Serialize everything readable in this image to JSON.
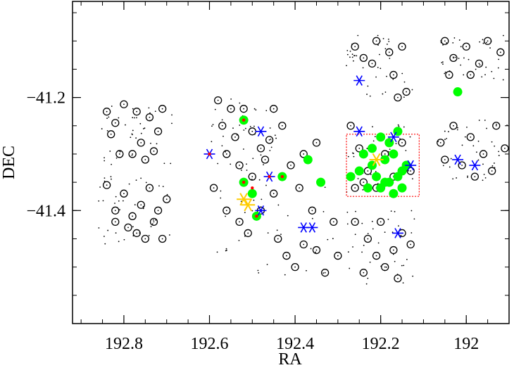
{
  "chart_data": {
    "type": "scatter",
    "title": "",
    "xlabel": "RA",
    "ylabel": "DEC",
    "xlim": [
      192.92,
      191.9
    ],
    "ylim": [
      -41.6,
      -41.03
    ],
    "x_ticks": [
      192.8,
      192.6,
      192.4,
      192.2,
      192.0
    ],
    "x_tick_labels": [
      "192.8",
      "192.6",
      "192.4",
      "192.2",
      "192"
    ],
    "y_ticks": [
      -41.2,
      -41.4
    ],
    "y_tick_labels": [
      "−41.2",
      "−41.4"
    ],
    "grid": false,
    "legend": "none",
    "colors": {
      "circles": "#000000",
      "green_filled": "#00ff00",
      "blue_stars": "#0000ff",
      "yellow_stars": "#ffcc00",
      "red_marks": "#ff0000",
      "dotted_box": "#ff0000"
    },
    "series": [
      {
        "marker": "open-circle",
        "points": [
          [
            192.84,
            -41.225
          ],
          [
            192.82,
            -41.245
          ],
          [
            192.8,
            -41.212
          ],
          [
            192.77,
            -41.225
          ],
          [
            192.74,
            -41.235
          ],
          [
            192.72,
            -41.26
          ],
          [
            192.76,
            -41.28
          ],
          [
            192.78,
            -41.3
          ],
          [
            192.83,
            -41.265
          ],
          [
            192.81,
            -41.3
          ],
          [
            192.73,
            -41.295
          ],
          [
            192.71,
            -41.22
          ],
          [
            192.75,
            -41.31
          ],
          [
            192.84,
            -41.355
          ],
          [
            192.82,
            -41.4
          ],
          [
            192.8,
            -41.37
          ],
          [
            192.78,
            -41.41
          ],
          [
            192.76,
            -41.39
          ],
          [
            192.74,
            -41.36
          ],
          [
            192.72,
            -41.4
          ],
          [
            192.7,
            -41.38
          ],
          [
            192.77,
            -41.44
          ],
          [
            192.75,
            -41.45
          ],
          [
            192.73,
            -41.42
          ],
          [
            192.79,
            -41.43
          ],
          [
            192.71,
            -41.45
          ],
          [
            192.82,
            -41.42
          ],
          [
            192.58,
            -41.205
          ],
          [
            192.55,
            -41.22
          ],
          [
            192.57,
            -41.25
          ],
          [
            192.54,
            -41.27
          ],
          [
            192.52,
            -41.22
          ],
          [
            192.5,
            -41.26
          ],
          [
            192.48,
            -41.29
          ],
          [
            192.56,
            -41.3
          ],
          [
            192.53,
            -41.32
          ],
          [
            192.5,
            -41.34
          ],
          [
            192.47,
            -41.31
          ],
          [
            192.45,
            -41.22
          ],
          [
            192.46,
            -41.275
          ],
          [
            192.59,
            -41.36
          ],
          [
            192.56,
            -41.4
          ],
          [
            192.53,
            -41.42
          ],
          [
            192.51,
            -41.44
          ],
          [
            192.48,
            -41.4
          ],
          [
            192.45,
            -41.37
          ],
          [
            192.44,
            -41.45
          ],
          [
            192.42,
            -41.48
          ],
          [
            192.4,
            -41.5
          ],
          [
            192.38,
            -41.46
          ],
          [
            192.35,
            -41.47
          ],
          [
            192.33,
            -41.51
          ],
          [
            192.36,
            -41.4
          ],
          [
            192.39,
            -41.36
          ],
          [
            192.41,
            -41.32
          ],
          [
            192.38,
            -41.3
          ],
          [
            192.35,
            -41.28
          ],
          [
            192.43,
            -41.25
          ],
          [
            192.31,
            -41.42
          ],
          [
            192.3,
            -41.48
          ],
          [
            192.26,
            -41.11
          ],
          [
            192.24,
            -41.13
          ],
          [
            192.21,
            -41.1
          ],
          [
            192.18,
            -41.12
          ],
          [
            192.15,
            -41.11
          ],
          [
            192.22,
            -41.14
          ],
          [
            192.17,
            -41.16
          ],
          [
            192.14,
            -41.19
          ],
          [
            192.16,
            -41.2
          ],
          [
            192.27,
            -41.25
          ],
          [
            192.25,
            -41.29
          ],
          [
            192.23,
            -41.33
          ],
          [
            192.21,
            -41.36
          ],
          [
            192.19,
            -41.3
          ],
          [
            192.17,
            -41.34
          ],
          [
            192.15,
            -41.28
          ],
          [
            192.13,
            -41.33
          ],
          [
            192.26,
            -41.36
          ],
          [
            192.24,
            -41.35
          ],
          [
            192.26,
            -41.42
          ],
          [
            192.23,
            -41.45
          ],
          [
            192.21,
            -41.48
          ],
          [
            192.19,
            -41.5
          ],
          [
            192.17,
            -41.47
          ],
          [
            192.15,
            -41.44
          ],
          [
            192.13,
            -41.46
          ],
          [
            192.2,
            -41.42
          ],
          [
            192.24,
            -41.51
          ],
          [
            192.16,
            -41.52
          ],
          [
            192.05,
            -41.1
          ],
          [
            192.03,
            -41.13
          ],
          [
            192.0,
            -41.11
          ],
          [
            191.97,
            -41.14
          ],
          [
            191.95,
            -41.1
          ],
          [
            191.92,
            -41.12
          ],
          [
            192.04,
            -41.16
          ],
          [
            191.99,
            -41.16
          ],
          [
            192.06,
            -41.28
          ],
          [
            192.03,
            -41.25
          ],
          [
            191.99,
            -41.27
          ],
          [
            191.96,
            -41.3
          ],
          [
            191.94,
            -41.33
          ],
          [
            192.01,
            -41.32
          ],
          [
            191.98,
            -41.34
          ],
          [
            192.05,
            -41.31
          ],
          [
            191.91,
            -41.29
          ],
          [
            191.93,
            -41.25
          ]
        ]
      },
      {
        "marker": "green-filled",
        "points": [
          [
            192.52,
            -41.24
          ],
          [
            192.52,
            -41.35
          ],
          [
            192.5,
            -41.37
          ],
          [
            192.49,
            -41.41
          ],
          [
            192.43,
            -41.34
          ],
          [
            192.37,
            -41.31
          ],
          [
            192.34,
            -41.35
          ],
          [
            192.02,
            -41.19
          ],
          [
            192.24,
            -41.3
          ],
          [
            192.22,
            -41.29
          ],
          [
            192.2,
            -41.27
          ],
          [
            192.18,
            -41.28
          ],
          [
            192.16,
            -41.26
          ],
          [
            192.19,
            -41.31
          ],
          [
            192.17,
            -41.3
          ],
          [
            192.15,
            -41.33
          ],
          [
            192.22,
            -41.32
          ],
          [
            192.25,
            -41.33
          ],
          [
            192.18,
            -41.35
          ],
          [
            192.16,
            -41.34
          ],
          [
            192.21,
            -41.34
          ],
          [
            192.14,
            -41.32
          ],
          [
            192.2,
            -41.36
          ],
          [
            192.17,
            -41.37
          ],
          [
            192.23,
            -41.36
          ],
          [
            192.27,
            -41.34
          ],
          [
            192.15,
            -41.36
          ],
          [
            192.19,
            -41.35
          ]
        ]
      },
      {
        "marker": "blue-star",
        "points": [
          [
            192.6,
            -41.3
          ],
          [
            192.48,
            -41.26
          ],
          [
            192.46,
            -41.34
          ],
          [
            192.48,
            -41.4
          ],
          [
            192.38,
            -41.43
          ],
          [
            192.36,
            -41.43
          ],
          [
            192.25,
            -41.17
          ],
          [
            192.25,
            -41.26
          ],
          [
            192.17,
            -41.27
          ],
          [
            192.13,
            -41.32
          ],
          [
            192.16,
            -41.44
          ],
          [
            192.02,
            -41.31
          ],
          [
            191.98,
            -41.32
          ]
        ]
      },
      {
        "marker": "yellow-star",
        "points": [
          [
            192.52,
            -41.38
          ],
          [
            192.51,
            -41.39
          ],
          [
            192.21,
            -41.31
          ]
        ]
      },
      {
        "marker": "red-mark",
        "points": [
          [
            192.6,
            -41.3
          ],
          [
            192.52,
            -41.24
          ],
          [
            192.52,
            -41.35
          ],
          [
            192.5,
            -41.36
          ],
          [
            192.49,
            -41.41
          ],
          [
            192.46,
            -41.34
          ],
          [
            192.43,
            -41.34
          ]
        ]
      }
    ],
    "box": {
      "ra": [
        192.28,
        192.11
      ],
      "dec": [
        -41.265,
        -41.375
      ],
      "style": "dotted"
    }
  }
}
